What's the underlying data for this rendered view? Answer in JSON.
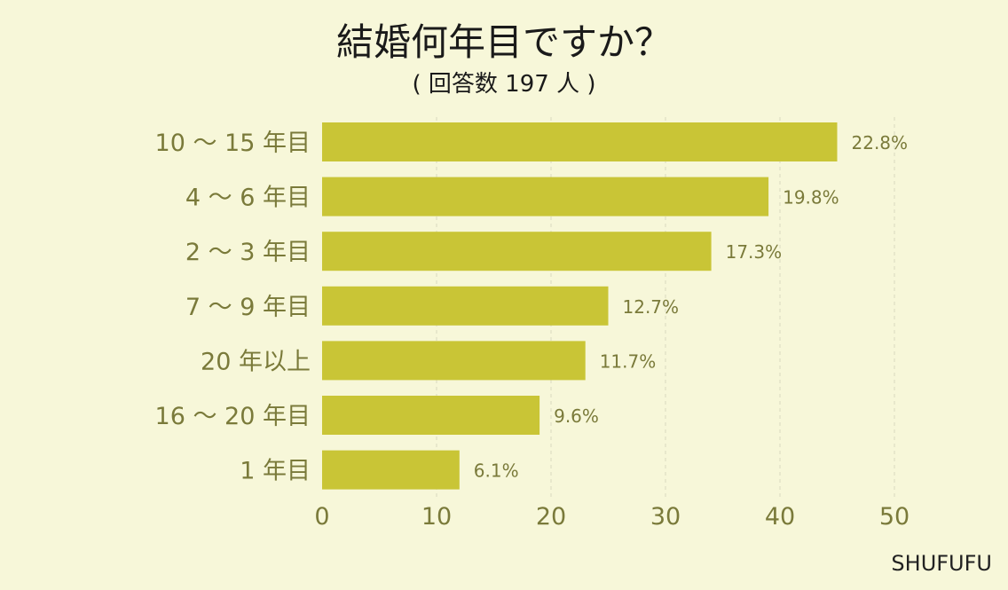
{
  "chart_data": {
    "type": "bar",
    "orientation": "horizontal",
    "title": "結婚何年目ですか？",
    "subtitle": "( 回答数 197 人 )",
    "categories": [
      "10 ～ 15 年目",
      "4 ～ 6 年目",
      "2 ～ 3 年目",
      "7 ～ 9 年目",
      "20 年以上",
      "16 ～ 20 年目",
      "1 年目"
    ],
    "values": [
      45,
      39,
      34,
      25,
      23,
      19,
      12
    ],
    "value_labels": [
      "22.8%",
      "19.8%",
      "17.3%",
      "12.7%",
      "11.7%",
      "9.6%",
      "6.1%"
    ],
    "xticks": [
      0,
      10,
      20,
      30,
      40,
      50
    ],
    "xlim": [
      0,
      50
    ],
    "grid": "vertical dashed",
    "bar_color": "#c9c536"
  },
  "brand": "SHUFUFU"
}
